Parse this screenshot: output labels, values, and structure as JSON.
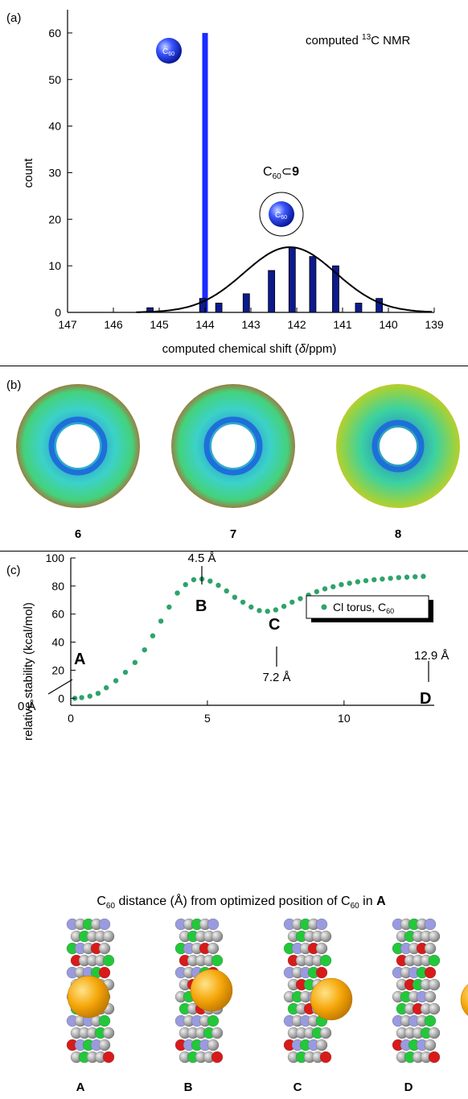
{
  "panel_a": {
    "panel_label": "(a)",
    "annotation_nmr_prefix": "computed ",
    "annotation_nmr_sup": "13",
    "annotation_nmr_suffix": "C NMR",
    "complex_label_base": "C",
    "complex_label_sub": "60",
    "complex_label_op": "⊂",
    "complex_label_num": "9",
    "ball_text_base": "C",
    "ball_text_sub": "60"
  },
  "panel_b": {
    "panel_label": "(b)",
    "labels": [
      "6",
      "7",
      "8"
    ]
  },
  "panel_c": {
    "panel_label": "(c)",
    "annotations": {
      "A": "A",
      "B": "B",
      "C": "C",
      "D": "D",
      "dist_A": "0 Å",
      "dist_B": "4.5 Å",
      "dist_C": "7.2 Å",
      "dist_D": "12.9 Å"
    },
    "legend_label": "Cl torus, C",
    "legend_sub": "60",
    "xlabel_pre": "C",
    "xlabel_sub": "60",
    "xlabel_mid": " distance (Å) from optimized position of C",
    "xlabel_sub2": "60",
    "xlabel_end": " in ",
    "xlabel_bold": "A"
  },
  "panel_d": {
    "labels": [
      "A",
      "B",
      "C",
      "D"
    ]
  },
  "colors": {
    "c60_bar": "#1a2cff",
    "complex_bar": "#0d1a8c",
    "scatter": "#2ea36b",
    "map_blue": "#1e6fd9",
    "map_green": "#3cd28a",
    "map_red": "#e03a1a",
    "fullerene": "#f5a70a"
  },
  "chart_data": [
    {
      "type": "bar",
      "title": "computed 13C NMR",
      "xlabel": "computed chemical shift (δ/ppm)",
      "ylabel": "count",
      "xlim": [
        147,
        139
      ],
      "ylim": [
        0,
        65
      ],
      "xticks": [
        147,
        146,
        145,
        144,
        143,
        142,
        141,
        140,
        139
      ],
      "yticks": [
        0,
        10,
        20,
        30,
        40,
        50,
        60
      ],
      "series": [
        {
          "name": "C60",
          "x": [
            144.0
          ],
          "values": [
            60
          ]
        },
        {
          "name": "C60⊂9",
          "x": [
            145.2,
            144.05,
            143.7,
            143.1,
            142.55,
            142.1,
            141.65,
            141.15,
            140.65,
            140.2
          ],
          "values": [
            1,
            3,
            2,
            4,
            9,
            14,
            12,
            10,
            2,
            3
          ]
        }
      ],
      "fit": {
        "type": "gaussian",
        "center": 142.15,
        "peak": 14,
        "sigma": 1.0
      }
    },
    {
      "type": "scatter",
      "xlabel": "C60 distance (Å) from optimized position of C60 in A",
      "ylabel": "relative stability (kcal/mol)",
      "xlim": [
        0,
        13.3
      ],
      "ylim": [
        -5,
        100
      ],
      "xticks": [
        0,
        5,
        10
      ],
      "yticks": [
        0,
        20,
        40,
        60,
        80,
        100
      ],
      "series": [
        {
          "name": "Cl torus, C60",
          "x": [
            0.15,
            0.4,
            0.7,
            1.0,
            1.3,
            1.65,
            2.0,
            2.35,
            2.7,
            3.0,
            3.3,
            3.6,
            3.9,
            4.2,
            4.5,
            4.8,
            5.1,
            5.4,
            5.7,
            6.0,
            6.3,
            6.6,
            6.9,
            7.2,
            7.5,
            7.8,
            8.1,
            8.4,
            8.7,
            9.0,
            9.3,
            9.6,
            9.9,
            10.2,
            10.5,
            10.8,
            11.1,
            11.4,
            11.7,
            12.0,
            12.3,
            12.6,
            12.9
          ],
          "values": [
            0,
            0.5,
            1.5,
            3.5,
            7.5,
            12.5,
            18.5,
            25.5,
            34.5,
            44.5,
            55.0,
            65.0,
            75.0,
            81.0,
            84.5,
            85.0,
            83.5,
            80.5,
            76.5,
            72.0,
            68.5,
            65.0,
            62.5,
            62.0,
            63.0,
            65.5,
            68.5,
            71.0,
            73.5,
            76.0,
            78.0,
            79.5,
            81.0,
            82.0,
            83.0,
            83.8,
            84.5,
            85.0,
            85.5,
            86.0,
            86.3,
            86.6,
            86.9
          ]
        }
      ]
    }
  ]
}
